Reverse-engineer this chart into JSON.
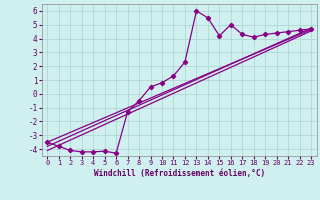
{
  "bg_color": "#cff0ee",
  "grid_color": "#afd8d5",
  "line_color": "#880088",
  "xlim": [
    -0.5,
    23.5
  ],
  "ylim": [
    -4.5,
    6.5
  ],
  "xticks": [
    0,
    1,
    2,
    3,
    4,
    5,
    6,
    7,
    8,
    9,
    10,
    11,
    12,
    13,
    14,
    15,
    16,
    17,
    18,
    19,
    20,
    21,
    22,
    23
  ],
  "yticks": [
    -4,
    -3,
    -2,
    -1,
    0,
    1,
    2,
    3,
    4,
    5,
    6
  ],
  "xlabel": "Windchill (Refroidissement éolien,°C)",
  "data_x": [
    0,
    1,
    2,
    3,
    4,
    5,
    6,
    7,
    8,
    9,
    10,
    11,
    12,
    13,
    14,
    15,
    16,
    17,
    18,
    19,
    20,
    21,
    22,
    23
  ],
  "data_y": [
    -3.5,
    -3.8,
    -4.1,
    -4.2,
    -4.2,
    -4.15,
    -4.3,
    -1.3,
    -0.5,
    0.5,
    0.8,
    1.3,
    2.3,
    6.0,
    5.5,
    4.2,
    5.0,
    4.3,
    4.1,
    4.3,
    4.4,
    4.5,
    4.6,
    4.7
  ],
  "line1_x": [
    0,
    23
  ],
  "line1_y": [
    -4.1,
    4.55
  ],
  "line2_x": [
    0,
    23
  ],
  "line2_y": [
    -3.8,
    4.75
  ],
  "line3_x": [
    0,
    23
  ],
  "line3_y": [
    -3.5,
    4.65
  ],
  "xlabel_fontsize": 5.5,
  "tick_fontsize_x": 5.0,
  "tick_fontsize_y": 5.5
}
